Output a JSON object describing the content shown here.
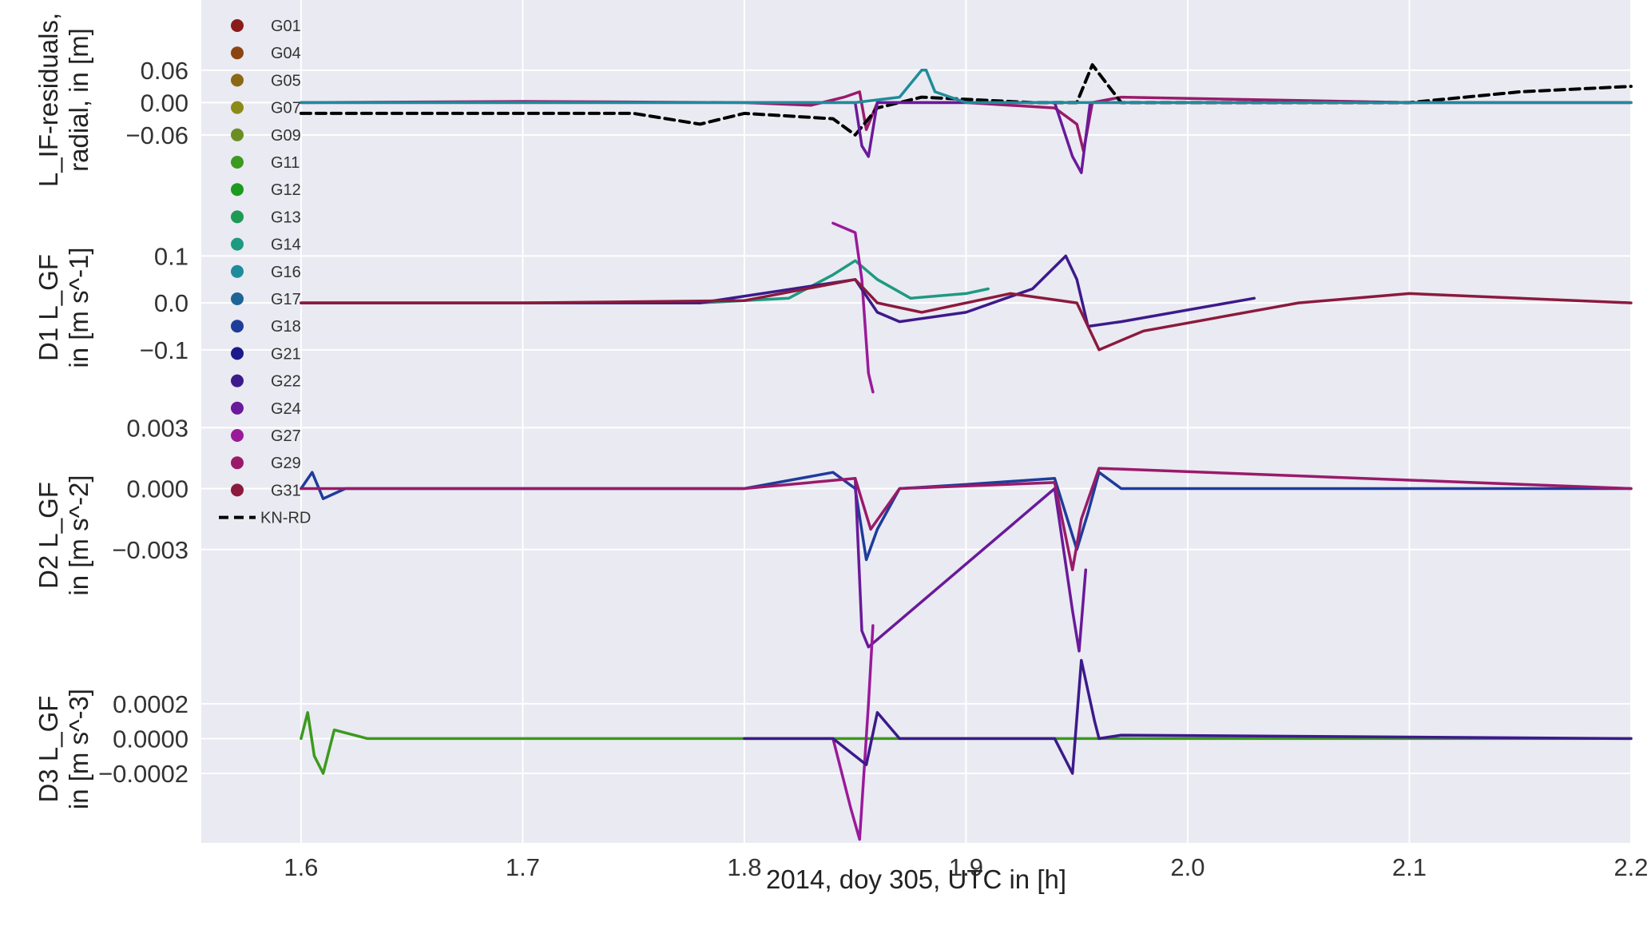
{
  "chart_data": {
    "type": "line",
    "xlabel": "2014, doy 305, UTC in [h]",
    "x_ticks": [
      "1.6",
      "1.7",
      "1.8",
      "1.9",
      "2.0",
      "2.1",
      "2.2"
    ],
    "xlim": [
      1.555,
      2.2
    ],
    "grid": true,
    "legend": {
      "placement": "upper-left",
      "entries": [
        {
          "name": "G01",
          "color": "#8b1a1a",
          "style": "dots"
        },
        {
          "name": "G04",
          "color": "#8b4513",
          "style": "dots"
        },
        {
          "name": "G05",
          "color": "#8b6914",
          "style": "dots"
        },
        {
          "name": "G07",
          "color": "#8b8b1a",
          "style": "dots"
        },
        {
          "name": "G09",
          "color": "#6b8e23",
          "style": "dots"
        },
        {
          "name": "G11",
          "color": "#3c9a1e",
          "style": "dots"
        },
        {
          "name": "G12",
          "color": "#1e9a1e",
          "style": "dots"
        },
        {
          "name": "G13",
          "color": "#1e9a55",
          "style": "dots"
        },
        {
          "name": "G14",
          "color": "#1e9a80",
          "style": "dots"
        },
        {
          "name": "G16",
          "color": "#1e8c9a",
          "style": "dots"
        },
        {
          "name": "G17",
          "color": "#1e6496",
          "style": "dots"
        },
        {
          "name": "G18",
          "color": "#1e3c9a",
          "style": "dots"
        },
        {
          "name": "G21",
          "color": "#1a1a8b",
          "style": "dots"
        },
        {
          "name": "G22",
          "color": "#3c1a8b",
          "style": "dots"
        },
        {
          "name": "G24",
          "color": "#6a1a9a",
          "style": "dots"
        },
        {
          "name": "G27",
          "color": "#9a1a9a",
          "style": "dots"
        },
        {
          "name": "G29",
          "color": "#9a1a6a",
          "style": "dots"
        },
        {
          "name": "G31",
          "color": "#8b1a3c",
          "style": "dots"
        },
        {
          "name": "KN-RD",
          "color": "#000000",
          "style": "dashed"
        }
      ]
    },
    "panels": [
      {
        "id": "lif",
        "ylabel_lines": [
          "L_IF-residuals,",
          "radial, in [m]"
        ],
        "yticks": [
          "0.06",
          "0.00",
          "−0.06"
        ],
        "tick_values": [
          0.06,
          0.0,
          -0.06
        ],
        "ylim": [
          -0.18,
          0.19
        ],
        "series": [
          {
            "name": "G29",
            "x": [
              1.6,
              1.7,
              1.8,
              1.83,
              1.845,
              1.852,
              1.855,
              1.86,
              1.9,
              1.94,
              1.95,
              1.953,
              1.957,
              1.97,
              2.1,
              2.2
            ],
            "y": [
              0.0,
              0.002,
              0.0,
              -0.005,
              0.01,
              0.02,
              -0.05,
              0.0,
              0.0,
              -0.01,
              -0.04,
              -0.09,
              0.0,
              0.01,
              0.0,
              0.0
            ]
          },
          {
            "name": "KN-RD",
            "x": [
              1.6,
              1.65,
              1.7,
              1.75,
              1.78,
              1.8,
              1.84,
              1.85,
              1.86,
              1.88,
              1.93,
              1.95,
              1.957,
              1.97,
              2.05,
              2.1,
              2.15,
              2.2
            ],
            "y": [
              -0.02,
              -0.02,
              -0.02,
              -0.02,
              -0.04,
              -0.02,
              -0.03,
              -0.06,
              -0.01,
              0.01,
              0.0,
              0.0,
              0.07,
              0.0,
              0.0,
              0.0,
              0.02,
              0.03
            ]
          },
          {
            "name": "G24",
            "x": [
              1.6,
              1.85,
              1.853,
              1.856,
              1.86,
              1.94,
              1.948,
              1.952,
              1.956,
              2.2
            ],
            "y": [
              0.0,
              0.0,
              -0.08,
              -0.1,
              0.0,
              0.0,
              -0.1,
              -0.13,
              0.0,
              0.0
            ]
          },
          {
            "name": "G16",
            "x": [
              1.6,
              1.85,
              1.87,
              1.88,
              1.882,
              1.886,
              1.9,
              2.2
            ],
            "y": [
              0.0,
              0.0,
              0.01,
              0.06,
              0.06,
              0.02,
              0.0,
              0.0
            ]
          }
        ]
      },
      {
        "id": "d1",
        "ylabel_lines": [
          "D1 L_GF",
          "in [m s^-1]"
        ],
        "yticks": [
          "0.1",
          "0.0",
          "−0.1"
        ],
        "tick_values": [
          0.1,
          0.0,
          -0.1
        ],
        "ylim": [
          -0.24,
          0.22
        ],
        "series": [
          {
            "name": "G14",
            "x": [
              1.6,
              1.7,
              1.78,
              1.82,
              1.84,
              1.85,
              1.86,
              1.875,
              1.9,
              1.91
            ],
            "y": [
              0.0,
              0.0,
              0.0,
              0.01,
              0.06,
              0.09,
              0.05,
              0.01,
              0.02,
              0.03
            ]
          },
          {
            "name": "G27",
            "x": [
              1.84,
              1.85,
              1.853,
              1.856,
              1.858
            ],
            "y": [
              0.17,
              0.15,
              0.05,
              -0.15,
              -0.19
            ]
          },
          {
            "name": "G22",
            "x": [
              1.6,
              1.78,
              1.85,
              1.86,
              1.87,
              1.9,
              1.93,
              1.945,
              1.95,
              1.955,
              1.97,
              2.03
            ],
            "y": [
              0.0,
              0.0,
              0.05,
              -0.02,
              -0.04,
              -0.02,
              0.03,
              0.1,
              0.05,
              -0.05,
              -0.04,
              0.01
            ]
          },
          {
            "name": "G31",
            "x": [
              1.6,
              1.7,
              1.8,
              1.85,
              1.86,
              1.88,
              1.92,
              1.95,
              1.96,
              1.98,
              2.05,
              2.1,
              2.2
            ],
            "y": [
              0.0,
              0.0,
              0.005,
              0.05,
              0.0,
              -0.02,
              0.02,
              0.0,
              -0.1,
              -0.06,
              0.0,
              0.02,
              0.0
            ]
          }
        ]
      },
      {
        "id": "d2",
        "ylabel_lines": [
          "D2 L_GF",
          "in [m s^-2]"
        ],
        "yticks": [
          "0.003",
          "0.000",
          "−0.003"
        ],
        "tick_values": [
          0.003,
          0.0,
          -0.003
        ],
        "ylim": [
          -0.0082,
          0.0036
        ],
        "series": [
          {
            "name": "G18",
            "x": [
              1.6,
              1.605,
              1.61,
              1.62,
              1.7,
              1.8,
              1.84,
              1.85,
              1.855,
              1.86,
              1.87,
              1.9,
              1.94,
              1.95,
              1.955,
              1.96,
              1.97,
              2.2
            ],
            "y": [
              0.0,
              0.0008,
              -0.0005,
              0.0,
              0.0,
              0.0,
              0.0008,
              0.0,
              -0.0035,
              -0.002,
              0.0,
              0.0002,
              0.0005,
              -0.003,
              -0.0012,
              0.0008,
              0.0,
              0.0
            ]
          },
          {
            "name": "G24",
            "x": [
              1.85,
              1.853,
              1.856,
              1.94,
              1.948,
              1.951,
              1.954
            ],
            "y": [
              0.0005,
              -0.007,
              -0.0078,
              0.0,
              -0.006,
              -0.008,
              -0.004
            ]
          },
          {
            "name": "G29",
            "x": [
              1.6,
              1.8,
              1.85,
              1.857,
              1.87,
              1.94,
              1.948,
              1.952,
              1.96,
              2.2
            ],
            "y": [
              0.0,
              0.0,
              0.0005,
              -0.002,
              0.0,
              0.0003,
              -0.004,
              -0.0015,
              0.001,
              0.0
            ]
          }
        ]
      },
      {
        "id": "d3",
        "ylabel_lines": [
          "D3 L_GF",
          "in [m s^-3]"
        ],
        "yticks": [
          "0.0002",
          "0.0000",
          "−0.0002"
        ],
        "tick_values": [
          0.0002,
          0.0,
          -0.0002
        ],
        "ylim": [
          -0.0006,
          0.00048
        ],
        "series": [
          {
            "name": "G11",
            "x": [
              1.6,
              1.603,
              1.606,
              1.61,
              1.615,
              1.63,
              1.8,
              2.2
            ],
            "y": [
              0.0,
              0.00015,
              -0.0001,
              -0.0002,
              5e-05,
              0.0,
              0.0,
              0.0
            ]
          },
          {
            "name": "G27",
            "x": [
              1.84,
              1.848,
              1.852,
              1.856,
              1.858
            ],
            "y": [
              0.0,
              -0.0004,
              -0.00058,
              0.0002,
              0.00065
            ]
          },
          {
            "name": "G22",
            "x": [
              1.8,
              1.84,
              1.85,
              1.855,
              1.86,
              1.87,
              1.94,
              1.948,
              1.952,
              1.958,
              1.96,
              1.97,
              2.2
            ],
            "y": [
              0.0,
              0.0,
              -0.0001,
              -0.00015,
              0.00015,
              0.0,
              0.0,
              -0.0002,
              0.00045,
              0.0001,
              0.0,
              2e-05,
              0.0
            ]
          }
        ]
      }
    ]
  }
}
